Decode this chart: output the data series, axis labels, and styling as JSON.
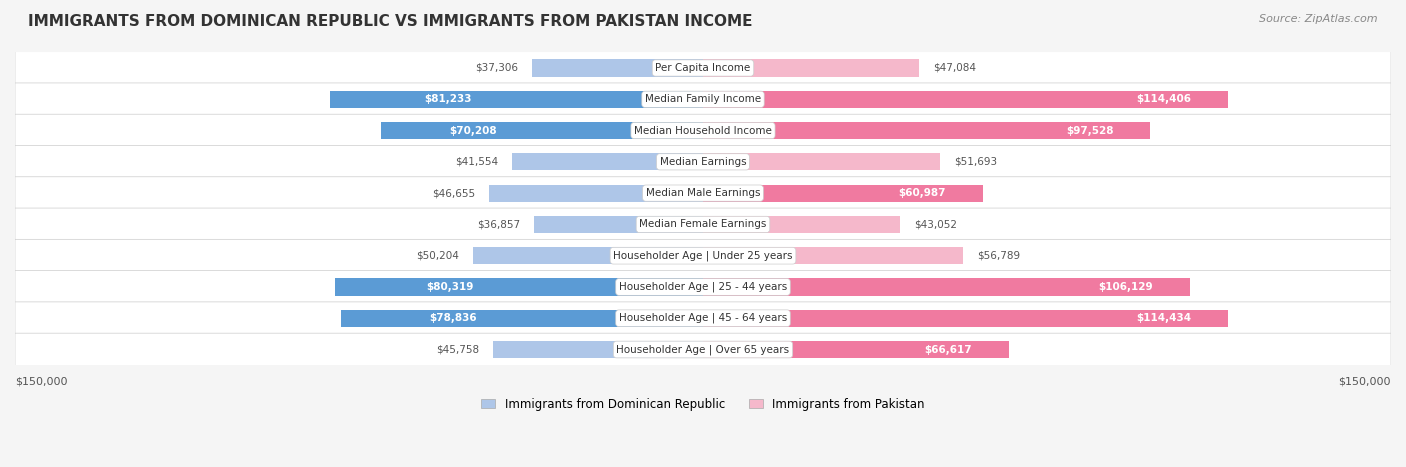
{
  "title": "IMMIGRANTS FROM DOMINICAN REPUBLIC VS IMMIGRANTS FROM PAKISTAN INCOME",
  "source": "Source: ZipAtlas.com",
  "categories": [
    "Per Capita Income",
    "Median Family Income",
    "Median Household Income",
    "Median Earnings",
    "Median Male Earnings",
    "Median Female Earnings",
    "Householder Age | Under 25 years",
    "Householder Age | 25 - 44 years",
    "Householder Age | 45 - 64 years",
    "Householder Age | Over 65 years"
  ],
  "dominican": [
    37306,
    81233,
    70208,
    41554,
    46655,
    36857,
    50204,
    80319,
    78836,
    45758
  ],
  "pakistan": [
    47084,
    114406,
    97528,
    51693,
    60987,
    43052,
    56789,
    106129,
    114434,
    66617
  ],
  "dominican_labels": [
    "$37,306",
    "$81,233",
    "$70,208",
    "$41,554",
    "$46,655",
    "$36,857",
    "$50,204",
    "$80,319",
    "$78,836",
    "$45,758"
  ],
  "pakistan_labels": [
    "$47,084",
    "$114,406",
    "$97,528",
    "$51,693",
    "$60,987",
    "$43,052",
    "$56,789",
    "$106,129",
    "$114,434",
    "$66,617"
  ],
  "max_val": 150000,
  "dom_color_dark": "#5b9bd5",
  "dom_color_light": "#aec6e8",
  "pak_color_dark": "#f07aa0",
  "pak_color_light": "#f5b8cb",
  "bg_color": "#f5f5f5",
  "row_bg": "#ffffff",
  "label_bg": "#ffffff",
  "title_color": "#333333",
  "legend_dom": "Immigrants from Dominican Republic",
  "legend_pak": "Immigrants from Pakistan",
  "axis_label_left": "$150,000",
  "axis_label_right": "$150,000"
}
